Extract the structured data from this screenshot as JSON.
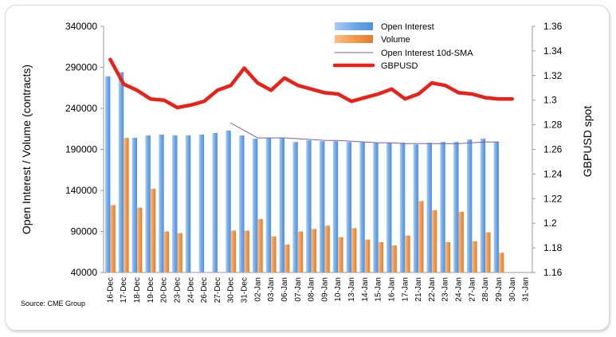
{
  "chart_data": {
    "type": "bar",
    "categories": [
      "16-Dec",
      "17-Dec",
      "18-Dec",
      "19-Dec",
      "20-Dec",
      "23-Dec",
      "24-Dec",
      "26-Dec",
      "27-Dec",
      "30-Dec",
      "31-Dec",
      "02-Jan",
      "03-Jan",
      "06-Jan",
      "07-Jan",
      "08-Jan",
      "09-Jan",
      "10-Jan",
      "13-Jan",
      "14-Jan",
      "15-Jan",
      "16-Jan",
      "17-Jan",
      "21-Jan",
      "22-Jan",
      "23-Jan",
      "24-Jan",
      "27-Jan",
      "28-Jan",
      "29-Jan",
      "30-Jan",
      "31-Jan"
    ],
    "series": [
      {
        "name": "Open Interest",
        "axis": "left",
        "kind": "bar",
        "color": "#6fa8e8",
        "values": [
          279000,
          284000,
          204000,
          207000,
          208000,
          207000,
          207000,
          208000,
          210000,
          213000,
          207000,
          203000,
          204000,
          204000,
          199000,
          201000,
          200000,
          200000,
          199000,
          199000,
          198000,
          198000,
          198000,
          196000,
          198000,
          199000,
          199000,
          202000,
          203000,
          199000,
          null,
          null
        ]
      },
      {
        "name": "Volume",
        "axis": "left",
        "kind": "bar",
        "color": "#f39a4c",
        "values": [
          122000,
          204000,
          119000,
          142000,
          90000,
          88000,
          null,
          null,
          null,
          91000,
          91000,
          105000,
          84000,
          74000,
          90000,
          93000,
          97000,
          83000,
          94000,
          80000,
          77000,
          73000,
          85000,
          127000,
          116000,
          77000,
          114000,
          78000,
          89000,
          64000,
          null,
          null
        ]
      },
      {
        "name": "Open Interest 10d-SMA",
        "axis": "left",
        "kind": "line",
        "color": "#7b5ea7",
        "values": [
          null,
          null,
          null,
          null,
          null,
          null,
          null,
          null,
          null,
          222000,
          213000,
          204000,
          204000,
          204000,
          203000,
          202000,
          201000,
          201000,
          200000,
          199000,
          198000,
          198000,
          197000,
          197000,
          197000,
          197000,
          197000,
          198000,
          199000,
          199000,
          null,
          null
        ]
      },
      {
        "name": "GBPUSD",
        "axis": "right",
        "kind": "line",
        "color": "#e8221a",
        "values": [
          1.333,
          1.313,
          1.308,
          1.301,
          1.3,
          1.294,
          1.296,
          1.299,
          1.308,
          1.312,
          1.326,
          1.314,
          1.308,
          1.318,
          1.312,
          1.309,
          1.306,
          1.305,
          1.299,
          1.302,
          1.305,
          1.309,
          1.301,
          1.305,
          1.314,
          1.312,
          1.306,
          1.305,
          1.302,
          1.301,
          1.301,
          null
        ]
      }
    ],
    "y_left": {
      "label": "Open Interest / Volume (contracts)",
      "min": 40000,
      "max": 340000,
      "ticks": [
        "340000",
        "290000",
        "240000",
        "190000",
        "140000",
        "90000",
        "40000"
      ]
    },
    "y_right": {
      "label": "GBPUSD spot",
      "min": 1.16,
      "max": 1.36,
      "ticks": [
        "1.36",
        "1.34",
        "1.32",
        "1.3",
        "1.28",
        "1.26",
        "1.24",
        "1.22",
        "1.2",
        "1.18",
        "1.16"
      ]
    },
    "source": "Source: CME Group",
    "legend_position": "top-right",
    "grid": false
  }
}
